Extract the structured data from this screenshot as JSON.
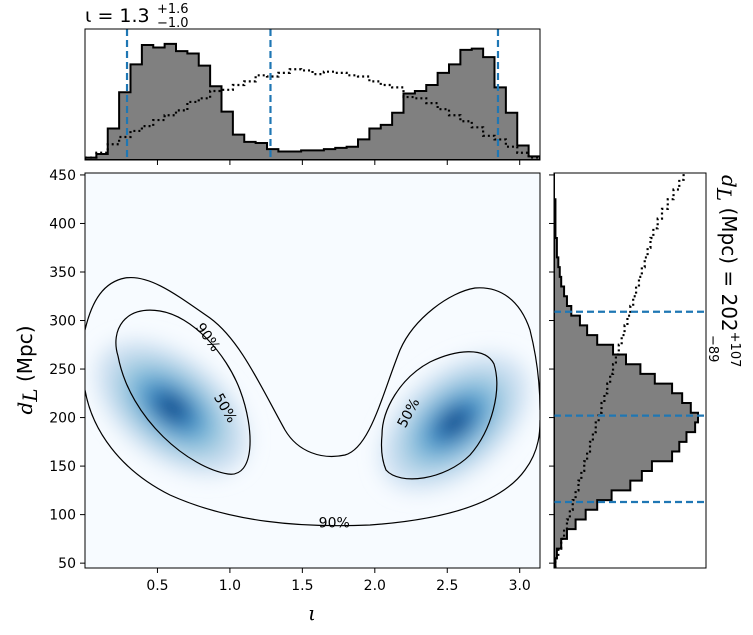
{
  "chart_data": [
    {
      "panel": "joint-density",
      "type": "heatmap",
      "xlabel": "ι",
      "ylabel_symbol": "d",
      "ylabel_sub": "L",
      "ylabel_unit": "(Mpc)",
      "xlim": [
        0.0,
        3.14
      ],
      "ylim": [
        45,
        452
      ],
      "x_ticks": [
        0.5,
        1.0,
        1.5,
        2.0,
        2.5,
        3.0
      ],
      "x_tick_labels": [
        "0.5",
        "1.0",
        "1.5",
        "2.0",
        "2.5",
        "3.0"
      ],
      "y_ticks": [
        50,
        100,
        150,
        200,
        250,
        300,
        350,
        400,
        450
      ],
      "y_tick_labels": [
        "50",
        "100",
        "150",
        "200",
        "250",
        "300",
        "350",
        "400",
        "450"
      ],
      "colormap": "Blues",
      "density_peaks": [
        {
          "x": 0.6,
          "y": 210,
          "peak": 1.0
        },
        {
          "x": 2.55,
          "y": 195,
          "peak": 0.95
        }
      ],
      "contour_labels": [
        {
          "text": "90%",
          "x": 0.85,
          "y": 283
        },
        {
          "text": "50%",
          "x": 0.97,
          "y": 210
        },
        {
          "text": "50%",
          "x": 2.23,
          "y": 205
        },
        {
          "text": "90%",
          "x": 1.72,
          "y": 92
        }
      ]
    },
    {
      "panel": "iota-marginal",
      "type": "bar",
      "title_base": "ι = 1.3",
      "title_sup": "+1.6",
      "title_sub": "−1.0",
      "xlim": [
        0.0,
        3.14
      ],
      "bin_width": 0.0785,
      "bin_starts": [
        0.0,
        0.0785,
        0.157,
        0.2355,
        0.314,
        0.3925,
        0.471,
        0.5495,
        0.628,
        0.7065,
        0.785,
        0.8635,
        0.942,
        1.0205,
        1.099,
        1.1775,
        1.256,
        1.3345,
        1.413,
        1.4915,
        1.57,
        1.6485,
        1.727,
        1.8055,
        1.884,
        1.9625,
        2.041,
        2.1195,
        2.198,
        2.2765,
        2.355,
        2.4335,
        2.512,
        2.5905,
        2.669,
        2.7475,
        2.826,
        2.9045,
        2.983,
        3.0615
      ],
      "posterior": [
        0.02,
        0.05,
        0.26,
        0.56,
        0.79,
        0.95,
        0.93,
        0.96,
        0.9,
        0.88,
        0.78,
        0.61,
        0.4,
        0.21,
        0.15,
        0.14,
        0.09,
        0.07,
        0.07,
        0.08,
        0.08,
        0.09,
        0.1,
        0.11,
        0.17,
        0.26,
        0.29,
        0.39,
        0.55,
        0.57,
        0.62,
        0.72,
        0.79,
        0.91,
        0.92,
        0.85,
        0.6,
        0.39,
        0.12,
        0.03
      ],
      "prior": [
        0.02,
        0.06,
        0.13,
        0.19,
        0.24,
        0.28,
        0.33,
        0.37,
        0.41,
        0.48,
        0.51,
        0.57,
        0.58,
        0.62,
        0.65,
        0.7,
        0.69,
        0.72,
        0.75,
        0.74,
        0.71,
        0.73,
        0.72,
        0.7,
        0.69,
        0.65,
        0.62,
        0.6,
        0.52,
        0.51,
        0.47,
        0.42,
        0.37,
        0.32,
        0.27,
        0.2,
        0.17,
        0.11,
        0.06,
        0.02
      ],
      "credible_lines": [
        0.29,
        1.28,
        2.85
      ]
    },
    {
      "panel": "distance-marginal",
      "type": "bar",
      "orientation": "horizontal",
      "label_symbol": "d",
      "label_sub": "L",
      "label_text": " (Mpc) = 202",
      "label_sup": "+107",
      "label_sub2": "−89",
      "ylim": [
        45,
        452
      ],
      "bin_height": 10,
      "bin_starts": [
        45,
        55,
        65,
        75,
        85,
        95,
        105,
        115,
        125,
        135,
        145,
        155,
        165,
        175,
        185,
        195,
        205,
        215,
        225,
        235,
        245,
        255,
        265,
        275,
        285,
        295,
        305,
        315,
        325,
        335,
        345,
        355,
        365,
        375,
        385,
        395,
        405,
        415,
        425,
        435,
        445
      ],
      "posterior": [
        0.01,
        0.02,
        0.05,
        0.09,
        0.15,
        0.22,
        0.3,
        0.4,
        0.53,
        0.61,
        0.68,
        0.82,
        0.87,
        0.92,
        0.98,
        1.0,
        0.95,
        0.89,
        0.82,
        0.7,
        0.6,
        0.5,
        0.41,
        0.3,
        0.23,
        0.18,
        0.12,
        0.09,
        0.07,
        0.05,
        0.04,
        0.03,
        0.02,
        0.02,
        0.01,
        0.01,
        0.01,
        0.01,
        0.0,
        0.0,
        0.0
      ],
      "prior": [
        0.01,
        0.03,
        0.05,
        0.07,
        0.09,
        0.11,
        0.13,
        0.15,
        0.17,
        0.19,
        0.21,
        0.23,
        0.25,
        0.27,
        0.29,
        0.31,
        0.33,
        0.35,
        0.37,
        0.39,
        0.41,
        0.43,
        0.45,
        0.47,
        0.49,
        0.51,
        0.53,
        0.55,
        0.57,
        0.59,
        0.61,
        0.63,
        0.65,
        0.67,
        0.69,
        0.72,
        0.75,
        0.79,
        0.83,
        0.87,
        0.9
      ],
      "credible_lines": [
        113,
        202,
        309
      ]
    }
  ],
  "colors": {
    "hist_fill": "#808080",
    "hist_edge": "#000000",
    "credible_line": "#1f77b4",
    "contour": "#000000",
    "density_high": "#08306b",
    "density_low": "#f7fbff"
  }
}
